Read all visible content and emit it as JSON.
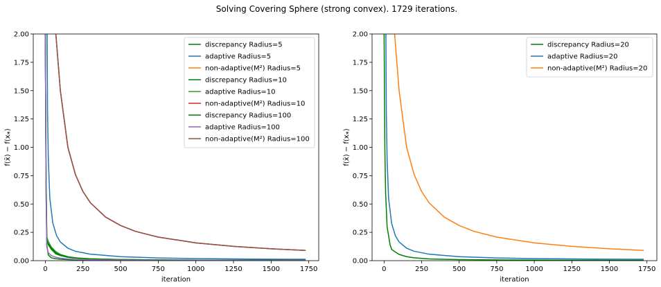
{
  "figure": {
    "title": "Solving Covering Sphere (strong convex). 1729 iterations."
  },
  "chart_data": [
    {
      "type": "line",
      "title": "",
      "xlabel": "iteration",
      "ylabel": "f(x̄) − f(x⁎)",
      "xlim": [
        -80,
        1816
      ],
      "ylim": [
        0,
        2.0
      ],
      "xticks": [
        "0",
        "250",
        "500",
        "750",
        "1000",
        "1250",
        "1500",
        "1750"
      ],
      "yticks": [
        "0.00",
        "0.25",
        "0.50",
        "0.75",
        "1.00",
        "1.25",
        "1.50",
        "1.75",
        "2.00"
      ],
      "legend_position": "top-right",
      "series": [
        {
          "name": "discrepancy Radius=5",
          "color": "#008000",
          "x": [
            0,
            5,
            10,
            20,
            40,
            70,
            100,
            150,
            200,
            300,
            500,
            800,
            1200,
            1729
          ],
          "y": [
            2.0,
            0.6,
            0.14,
            0.05,
            0.025,
            0.017,
            0.012,
            0.009,
            0.007,
            0.005,
            0.003,
            0.002,
            0.002,
            0.001
          ]
        },
        {
          "name": "adaptive Radius=5",
          "color": "#1f77b4",
          "x": [
            12,
            15,
            20,
            30,
            50,
            75,
            100,
            150,
            200,
            300,
            500,
            750,
            1000,
            1250,
            1500,
            1729
          ],
          "y": [
            2.0,
            1.3,
            0.9,
            0.55,
            0.33,
            0.22,
            0.165,
            0.11,
            0.083,
            0.057,
            0.035,
            0.024,
            0.018,
            0.015,
            0.013,
            0.012
          ]
        },
        {
          "name": "non-adaptive(M²) Radius=5",
          "color": "#ff7f0e",
          "x": [
            70,
            100,
            150,
            200,
            250,
            300,
            400,
            500,
            600,
            750,
            1000,
            1250,
            1500,
            1729
          ],
          "y": [
            2.0,
            1.5,
            1.0,
            0.76,
            0.61,
            0.51,
            0.385,
            0.31,
            0.258,
            0.208,
            0.157,
            0.126,
            0.105,
            0.09
          ]
        },
        {
          "name": "discrepancy Radius=10",
          "color": "#008000",
          "x": [
            0,
            5,
            10,
            20,
            40,
            70,
            100,
            150,
            200,
            300,
            500,
            800,
            1200,
            1729
          ],
          "y": [
            2.0,
            0.75,
            0.19,
            0.14,
            0.1,
            0.06,
            0.045,
            0.03,
            0.022,
            0.015,
            0.009,
            0.006,
            0.004,
            0.003
          ]
        },
        {
          "name": "adaptive Radius=10",
          "color": "#2ca02c",
          "x": [
            0,
            5,
            10,
            20,
            40,
            70,
            100,
            150,
            200,
            300,
            500,
            800,
            1200,
            1729
          ],
          "y": [
            2.0,
            0.8,
            0.21,
            0.17,
            0.12,
            0.08,
            0.055,
            0.035,
            0.025,
            0.016,
            0.01,
            0.006,
            0.004,
            0.003
          ]
        },
        {
          "name": "non-adaptive(M²) Radius=10",
          "color": "#d62728",
          "x": [
            70,
            100,
            150,
            200,
            250,
            300,
            400,
            500,
            600,
            750,
            1000,
            1250,
            1500,
            1729
          ],
          "y": [
            2.0,
            1.5,
            1.0,
            0.76,
            0.61,
            0.51,
            0.385,
            0.31,
            0.258,
            0.208,
            0.157,
            0.126,
            0.105,
            0.09
          ]
        },
        {
          "name": "discrepancy Radius=100",
          "color": "#008000",
          "x": [
            0,
            5,
            10,
            20,
            40,
            70,
            100,
            150,
            200,
            300,
            500,
            800,
            1200,
            1729
          ],
          "y": [
            2.0,
            0.7,
            0.18,
            0.15,
            0.11,
            0.07,
            0.05,
            0.032,
            0.024,
            0.016,
            0.01,
            0.006,
            0.004,
            0.003
          ]
        },
        {
          "name": "adaptive Radius=100",
          "color": "#9467bd",
          "x": [
            0,
            5,
            10,
            20,
            40,
            70,
            100,
            150,
            200,
            300,
            500,
            800,
            1200,
            1729
          ],
          "y": [
            2.0,
            0.6,
            0.12,
            0.07,
            0.045,
            0.03,
            0.022,
            0.015,
            0.011,
            0.008,
            0.005,
            0.003,
            0.002,
            0.002
          ]
        },
        {
          "name": "non-adaptive(M²) Radius=100",
          "color": "#8c564b",
          "x": [
            70,
            100,
            150,
            200,
            250,
            300,
            400,
            500,
            600,
            750,
            1000,
            1250,
            1500,
            1729
          ],
          "y": [
            2.0,
            1.5,
            1.0,
            0.76,
            0.61,
            0.51,
            0.385,
            0.31,
            0.258,
            0.208,
            0.157,
            0.126,
            0.105,
            0.09
          ]
        }
      ]
    },
    {
      "type": "line",
      "title": "",
      "xlabel": "iteration",
      "ylabel": "f(x̄) − f(x⁎)",
      "xlim": [
        -80,
        1816
      ],
      "ylim": [
        0,
        2.0
      ],
      "xticks": [
        "0",
        "250",
        "500",
        "750",
        "1000",
        "1250",
        "1500",
        "1750"
      ],
      "yticks": [
        "0.00",
        "0.25",
        "0.50",
        "0.75",
        "1.00",
        "1.25",
        "1.50",
        "1.75",
        "2.00"
      ],
      "legend_position": "top-right",
      "series": [
        {
          "name": "discrepancy Radius=20",
          "color": "#008000",
          "x": [
            0,
            5,
            10,
            20,
            40,
            50,
            70,
            100,
            150,
            200,
            300,
            500,
            800,
            1200,
            1729
          ],
          "y": [
            2.0,
            1.0,
            0.6,
            0.3,
            0.14,
            0.1,
            0.08,
            0.055,
            0.035,
            0.025,
            0.015,
            0.009,
            0.006,
            0.004,
            0.003
          ]
        },
        {
          "name": "adaptive Radius=20",
          "color": "#1f77b4",
          "x": [
            12,
            15,
            20,
            30,
            50,
            75,
            100,
            150,
            200,
            300,
            500,
            750,
            1000,
            1250,
            1500,
            1729
          ],
          "y": [
            2.0,
            1.3,
            0.9,
            0.55,
            0.33,
            0.22,
            0.165,
            0.11,
            0.083,
            0.057,
            0.035,
            0.024,
            0.018,
            0.015,
            0.013,
            0.012
          ]
        },
        {
          "name": "non-adaptive(M²) Radius=20",
          "color": "#ff7f0e",
          "x": [
            70,
            100,
            150,
            200,
            250,
            300,
            400,
            500,
            600,
            750,
            1000,
            1250,
            1500,
            1729
          ],
          "y": [
            2.0,
            1.5,
            1.0,
            0.76,
            0.61,
            0.51,
            0.385,
            0.31,
            0.258,
            0.208,
            0.157,
            0.126,
            0.105,
            0.09
          ]
        }
      ]
    }
  ]
}
